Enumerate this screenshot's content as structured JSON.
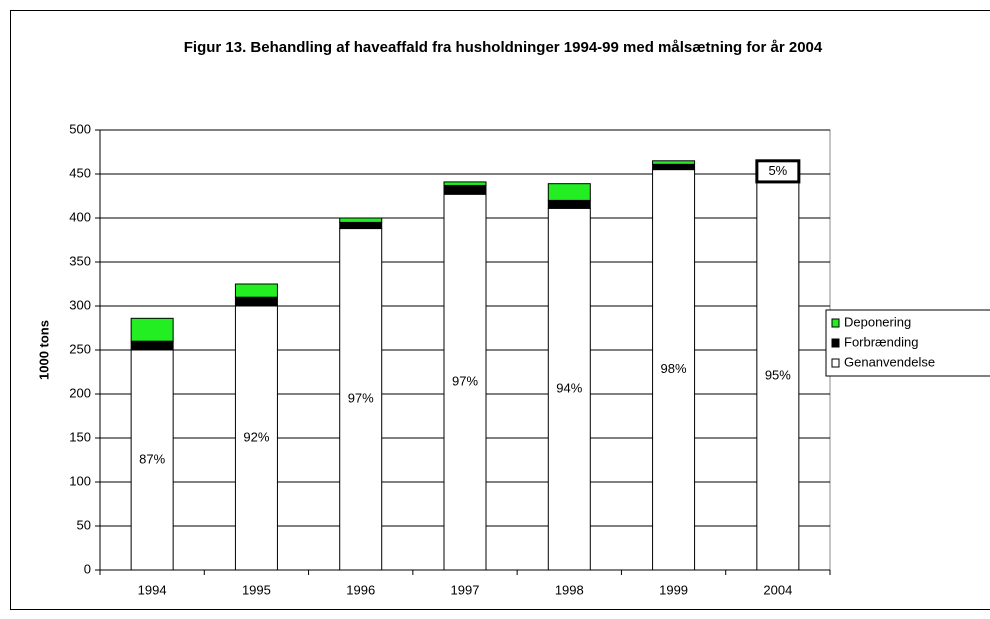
{
  "chart_data": {
    "type": "stacked_bar",
    "title": "Figur 13. Behandling af haveaffald fra husholdninger 1994-99 med målsætning for år 2004",
    "y_label": "1000 tons",
    "categories": [
      "1994",
      "1995",
      "1996",
      "1997",
      "1998",
      "1999",
      "2004"
    ],
    "series": [
      {
        "name": "Genanvendelse",
        "color": "#ffffff",
        "values": [
          250,
          300,
          388,
          427,
          411,
          455,
          441
        ],
        "labels": [
          "87%",
          "92%",
          "97%",
          "97%",
          "94%",
          "98%",
          "95%"
        ]
      },
      {
        "name": "Forbrænding",
        "color": "#000000",
        "values": [
          10,
          10,
          7,
          10,
          9,
          6,
          24
        ],
        "colors": [
          "#000000",
          "#000000",
          "#000000",
          "#000000",
          "#000000",
          "#000000",
          "#ffffff"
        ],
        "labels": [
          null,
          null,
          null,
          null,
          null,
          null,
          "5%"
        ]
      },
      {
        "name": "Deponering",
        "color": "#22ee22",
        "values": [
          26,
          15,
          5,
          4,
          19,
          4,
          0
        ]
      }
    ],
    "ylim": [
      0,
      500
    ],
    "yticks": [
      0,
      50,
      100,
      150,
      200,
      250,
      300,
      350,
      400,
      450,
      500
    ],
    "grid": true,
    "legend": "right"
  }
}
